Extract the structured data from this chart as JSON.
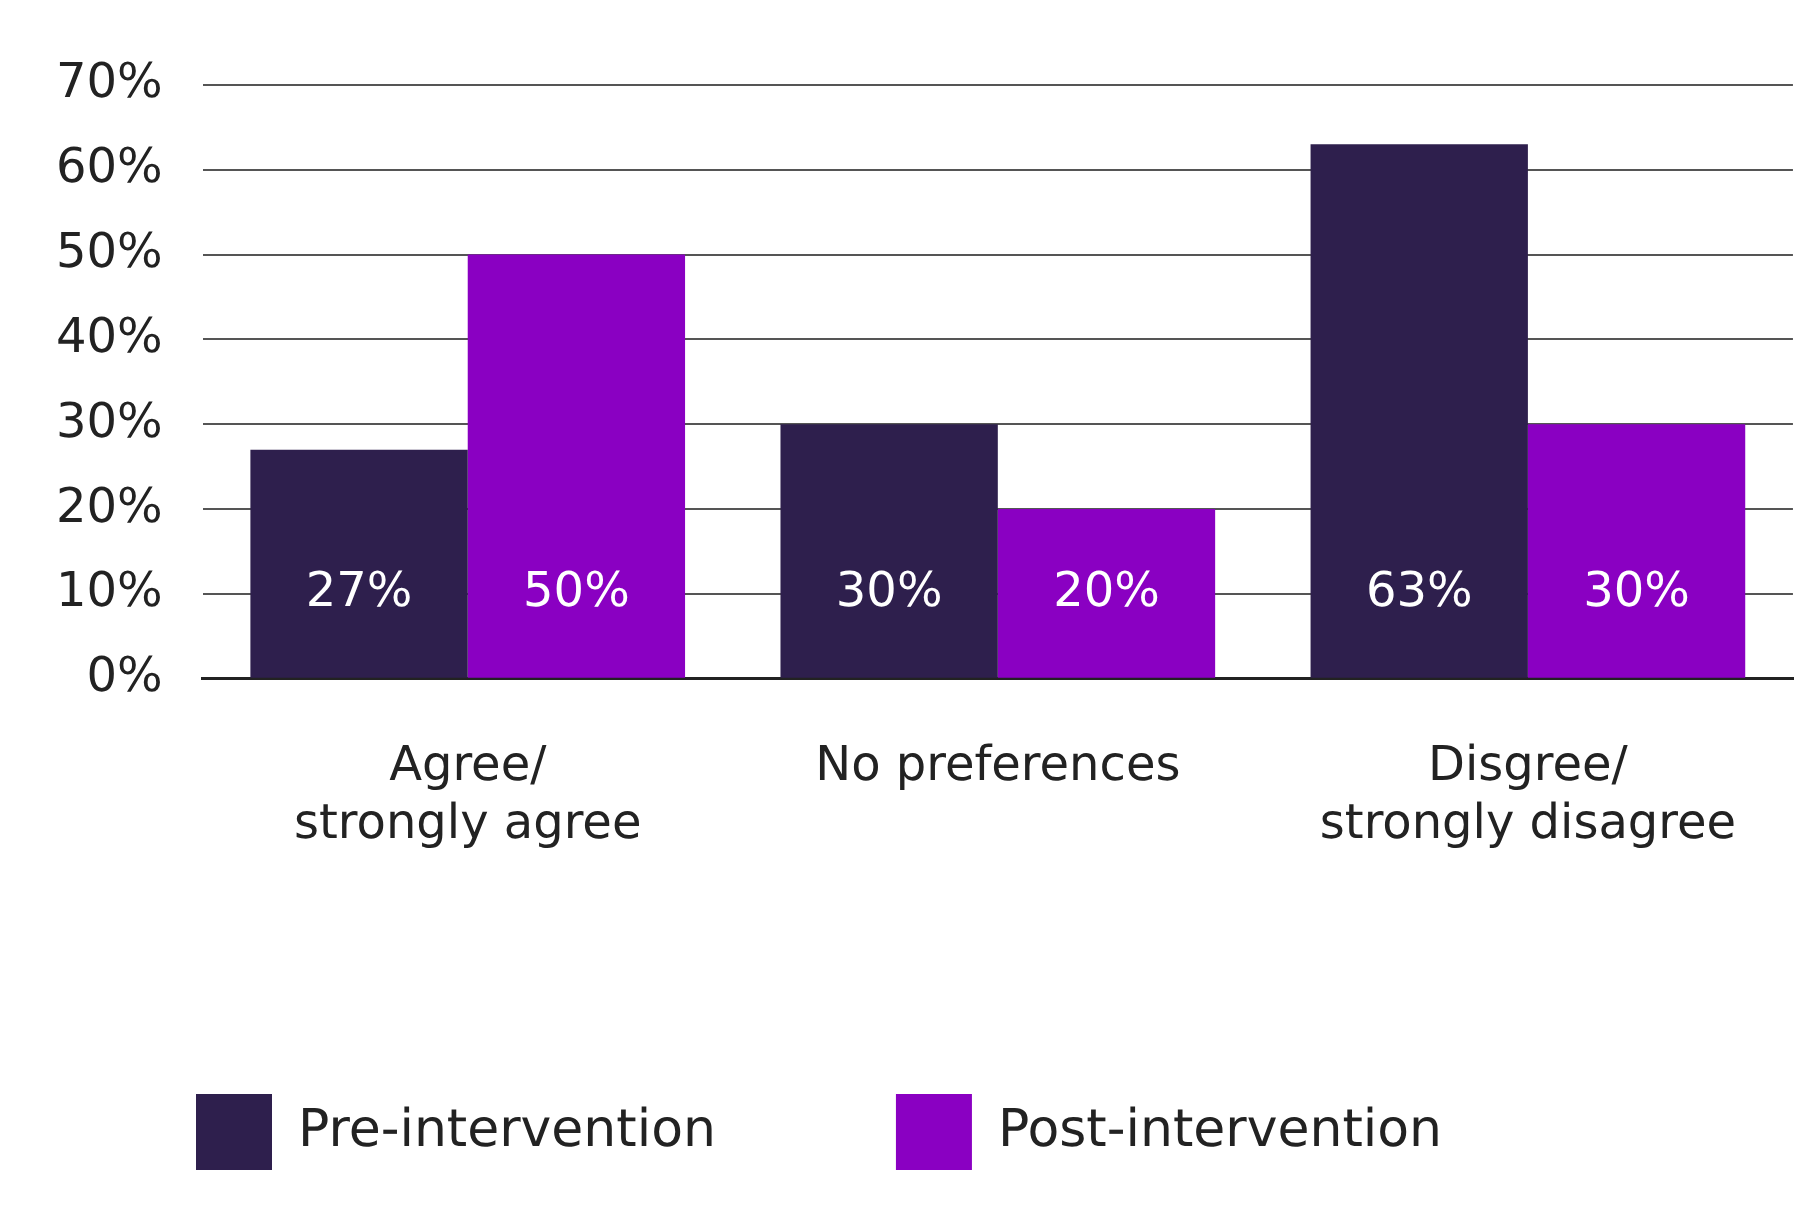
{
  "chart_data": {
    "type": "bar",
    "categories": [
      "Agree/\nstrongly agree",
      "No preferences",
      "Disgree/\nstrongly disagree"
    ],
    "series": [
      {
        "name": "Pre-intervention",
        "color": "#2e1f4d",
        "values": [
          27,
          30,
          63
        ],
        "value_labels": [
          "27%",
          "30%",
          "63%"
        ]
      },
      {
        "name": "Post-intervention",
        "color": "#8a00c2",
        "values": [
          50,
          20,
          30
        ],
        "value_labels": [
          "50%",
          "20%",
          "30%"
        ]
      }
    ],
    "ylim": [
      0,
      70
    ],
    "yticks": [
      {
        "value": 0,
        "label": "0%"
      },
      {
        "value": 10,
        "label": "10%"
      },
      {
        "value": 20,
        "label": "20%"
      },
      {
        "value": 30,
        "label": "30%"
      },
      {
        "value": 40,
        "label": "40%"
      },
      {
        "value": 50,
        "label": "50%"
      },
      {
        "value": 60,
        "label": "60%"
      },
      {
        "value": 70,
        "label": "70%"
      }
    ],
    "grid": "y",
    "legend": "bottom"
  }
}
